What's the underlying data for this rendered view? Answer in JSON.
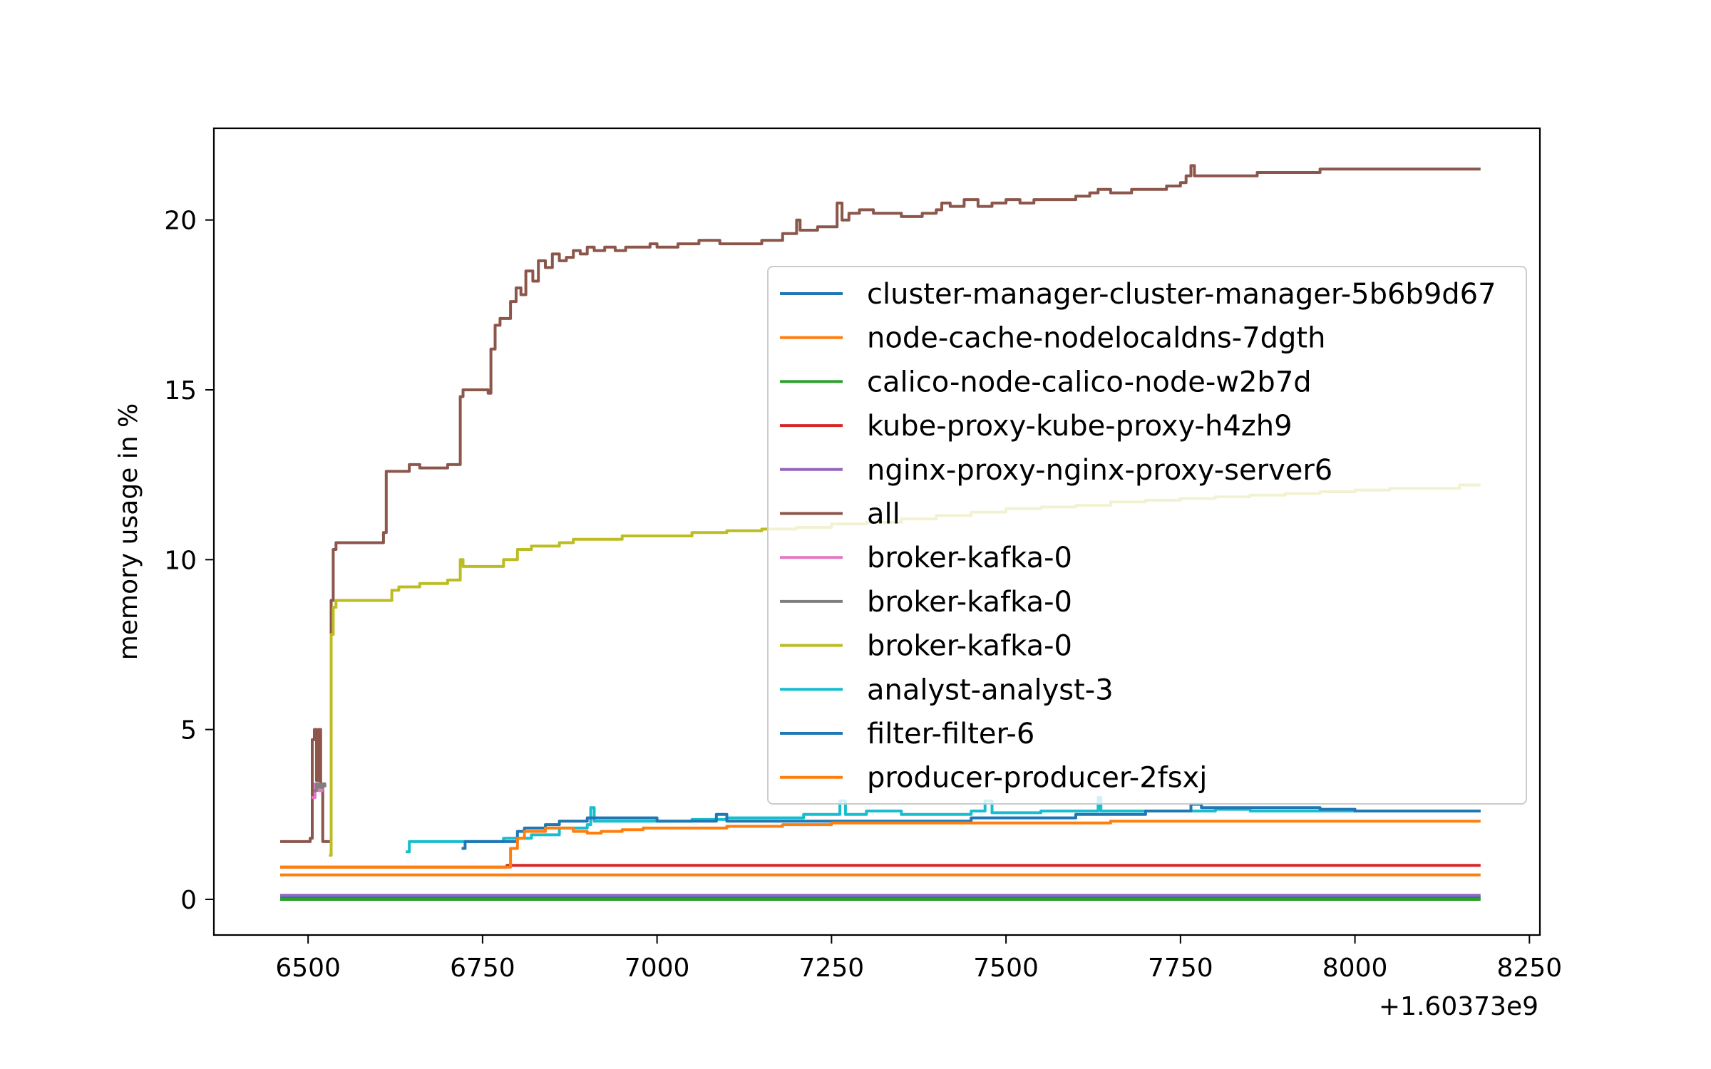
{
  "chart_data": {
    "type": "line",
    "title": "",
    "xlabel": "",
    "ylabel": "memory usage in %",
    "x_offset_label": "+1.60373e9",
    "xlim": [
      6365,
      8265
    ],
    "ylim": [
      -1.05,
      22.7
    ],
    "xticks": [
      6500,
      6750,
      7000,
      7250,
      7500,
      7750,
      8000,
      8250
    ],
    "xtick_labels": [
      "6500",
      "6750",
      "7000",
      "7250",
      "7500",
      "7750",
      "8000",
      "8250"
    ],
    "yticks": [
      0,
      5,
      10,
      15,
      20
    ],
    "ytick_labels": [
      "0",
      "5",
      "10",
      "15",
      "20"
    ],
    "grid": false,
    "legend_position": "center-right",
    "series": [
      {
        "name": "cluster-manager-cluster-manager-5b6b9d67",
        "color": "#1f77b4",
        "x": [
          6460,
          8180
        ],
        "y": [
          0.05,
          0.05
        ]
      },
      {
        "name": "node-cache-nodelocaldns-7dgth",
        "color": "#ff7f0e",
        "x": [
          6460,
          8180
        ],
        "y": [
          0.72,
          0.72
        ]
      },
      {
        "name": "calico-node-calico-node-w2b7d",
        "color": "#2ca02c",
        "x": [
          6460,
          8180
        ],
        "y": [
          0.0,
          0.0
        ]
      },
      {
        "name": "kube-proxy-kube-proxy-h4zh9",
        "color": "#d62728",
        "x": [
          6460,
          6780,
          6785,
          8180
        ],
        "y": [
          0.95,
          0.95,
          1.0,
          1.0
        ]
      },
      {
        "name": "nginx-proxy-nginx-proxy-server6",
        "color": "#9467bd",
        "x": [
          6460,
          8180
        ],
        "y": [
          0.12,
          0.12
        ]
      },
      {
        "name": "all",
        "color": "#8c564b",
        "x": [
          6460,
          6500,
          6503,
          6506,
          6509,
          6512,
          6515,
          6518,
          6521,
          6524,
          6527,
          6530,
          6533,
          6536,
          6540,
          6560,
          6590,
          6605,
          6608,
          6612,
          6640,
          6645,
          6660,
          6680,
          6700,
          6715,
          6718,
          6722,
          6750,
          6758,
          6762,
          6768,
          6775,
          6782,
          6790,
          6798,
          6805,
          6812,
          6822,
          6830,
          6840,
          6850,
          6860,
          6870,
          6880,
          6890,
          6900,
          6910,
          6925,
          6940,
          6955,
          6970,
          6990,
          7000,
          7030,
          7060,
          7090,
          7120,
          7150,
          7180,
          7195,
          7200,
          7205,
          7230,
          7250,
          7258,
          7265,
          7275,
          7290,
          7310,
          7330,
          7350,
          7380,
          7400,
          7408,
          7420,
          7440,
          7460,
          7480,
          7500,
          7520,
          7540,
          7560,
          7580,
          7600,
          7620,
          7632,
          7650,
          7680,
          7700,
          7730,
          7750,
          7758,
          7765,
          7770,
          7800,
          7830,
          7860,
          7900,
          7950,
          8000,
          8050,
          8100,
          8150,
          8180
        ],
        "y": [
          1.7,
          1.7,
          1.8,
          4.7,
          5.0,
          3.5,
          5.0,
          3.3,
          1.7,
          1.7,
          1.7,
          1.7,
          8.8,
          10.3,
          10.5,
          10.5,
          10.5,
          10.5,
          10.8,
          12.6,
          12.6,
          12.8,
          12.7,
          12.7,
          12.8,
          12.8,
          14.8,
          15.0,
          15.0,
          14.9,
          16.2,
          16.9,
          17.1,
          17.1,
          17.6,
          18.0,
          17.8,
          18.5,
          18.2,
          18.8,
          18.6,
          19.0,
          18.8,
          18.9,
          19.1,
          19.0,
          19.2,
          19.1,
          19.2,
          19.1,
          19.2,
          19.2,
          19.3,
          19.2,
          19.3,
          19.4,
          19.3,
          19.3,
          19.4,
          19.6,
          19.6,
          20.0,
          19.7,
          19.8,
          19.8,
          20.5,
          20.0,
          20.2,
          20.3,
          20.2,
          20.2,
          20.1,
          20.2,
          20.3,
          20.5,
          20.4,
          20.6,
          20.4,
          20.5,
          20.6,
          20.5,
          20.6,
          20.6,
          20.6,
          20.7,
          20.8,
          20.9,
          20.8,
          20.9,
          20.9,
          21.0,
          21.1,
          21.3,
          21.6,
          21.3,
          21.3,
          21.3,
          21.4,
          21.4,
          21.5,
          21.5,
          21.5,
          21.5,
          21.5,
          21.5
        ]
      },
      {
        "name": "broker-kafka-0",
        "color": "#e377c2",
        "x": [
          6505,
          6510,
          6515,
          6520
        ],
        "y": [
          3.0,
          3.4,
          3.2,
          3.3
        ]
      },
      {
        "name": "broker-kafka-0",
        "color": "#7f7f7f",
        "x": [
          6508,
          6512,
          6516,
          6520,
          6524
        ],
        "y": [
          3.2,
          3.4,
          3.3,
          3.4,
          3.3
        ]
      },
      {
        "name": "broker-kafka-0",
        "color": "#bcbd22",
        "x": [
          6530,
          6533,
          6536,
          6540,
          6560,
          6590,
          6610,
          6620,
          6630,
          6640,
          6660,
          6680,
          6700,
          6710,
          6718,
          6722,
          6740,
          6760,
          6780,
          6800,
          6820,
          6840,
          6860,
          6880,
          6900,
          6950,
          7000,
          7050,
          7100,
          7150,
          7200,
          7250,
          7300,
          7350,
          7400,
          7450,
          7500,
          7550,
          7600,
          7650,
          7700,
          7750,
          7800,
          7850,
          7900,
          7950,
          8000,
          8050,
          8100,
          8150,
          8180
        ],
        "y": [
          1.3,
          7.8,
          8.6,
          8.8,
          8.8,
          8.8,
          8.8,
          9.1,
          9.2,
          9.2,
          9.3,
          9.3,
          9.4,
          9.4,
          10.0,
          9.8,
          9.8,
          9.8,
          10.0,
          10.3,
          10.4,
          10.4,
          10.5,
          10.6,
          10.6,
          10.7,
          10.7,
          10.8,
          10.85,
          10.9,
          10.95,
          11.05,
          11.1,
          11.2,
          11.3,
          11.4,
          11.5,
          11.55,
          11.6,
          11.7,
          11.75,
          11.8,
          11.85,
          11.9,
          11.95,
          12.0,
          12.05,
          12.1,
          12.1,
          12.2,
          12.2
        ]
      },
      {
        "name": "analyst-analyst-3",
        "color": "#17becf",
        "x": [
          6640,
          6645,
          6700,
          6780,
          6820,
          6860,
          6900,
          6905,
          6910,
          6950,
          7000,
          7050,
          7100,
          7150,
          7200,
          7210,
          7250,
          7262,
          7270,
          7300,
          7350,
          7400,
          7450,
          7470,
          7480,
          7500,
          7550,
          7600,
          7632,
          7636,
          7650,
          7700,
          7750,
          7800,
          7850,
          7900,
          7950,
          8000,
          8050,
          8100,
          8150,
          8180
        ],
        "y": [
          1.4,
          1.7,
          1.7,
          1.8,
          1.9,
          2.1,
          2.2,
          2.7,
          2.3,
          2.3,
          2.3,
          2.35,
          2.4,
          2.4,
          2.4,
          2.5,
          2.5,
          2.9,
          2.5,
          2.6,
          2.5,
          2.5,
          2.6,
          2.9,
          2.55,
          2.55,
          2.6,
          2.6,
          3.0,
          2.6,
          2.6,
          2.6,
          2.6,
          2.65,
          2.6,
          2.6,
          2.6,
          2.6,
          2.6,
          2.6,
          2.6,
          2.6
        ]
      },
      {
        "name": "filter-filter-6",
        "color": "#1f77b4",
        "x": [
          6720,
          6725,
          6760,
          6800,
          6810,
          6840,
          6860,
          6880,
          6900,
          6950,
          7000,
          7080,
          7085,
          7100,
          7200,
          7300,
          7400,
          7450,
          7500,
          7600,
          7650,
          7700,
          7760,
          7765,
          7780,
          7800,
          7900,
          7950,
          8000,
          8050,
          8100,
          8150,
          8180
        ],
        "y": [
          1.5,
          1.7,
          1.7,
          2.0,
          2.1,
          2.2,
          2.3,
          2.3,
          2.4,
          2.4,
          2.3,
          2.3,
          2.5,
          2.3,
          2.3,
          2.3,
          2.3,
          2.4,
          2.4,
          2.5,
          2.5,
          2.6,
          2.6,
          2.8,
          2.7,
          2.7,
          2.7,
          2.65,
          2.6,
          2.6,
          2.6,
          2.6,
          2.6
        ]
      },
      {
        "name": "producer-producer-2fsxj",
        "color": "#ff7f0e",
        "x": [
          6460,
          6775,
          6790,
          6800,
          6810,
          6825,
          6840,
          6860,
          6880,
          6900,
          6920,
          6940,
          6950,
          6980,
          7000,
          7050,
          7100,
          7150,
          7180,
          7200,
          7250,
          7300,
          7350,
          7400,
          7450,
          7500,
          7550,
          7600,
          7650,
          7700,
          7800,
          7900,
          8000,
          8100,
          8180
        ],
        "y": [
          0.95,
          0.95,
          1.5,
          1.8,
          2.0,
          2.0,
          2.1,
          2.1,
          2.0,
          1.95,
          2.0,
          2.0,
          2.05,
          2.1,
          2.1,
          2.1,
          2.15,
          2.15,
          2.2,
          2.2,
          2.25,
          2.25,
          2.25,
          2.25,
          2.25,
          2.25,
          2.25,
          2.25,
          2.3,
          2.3,
          2.3,
          2.3,
          2.3,
          2.3,
          2.3
        ]
      }
    ]
  }
}
